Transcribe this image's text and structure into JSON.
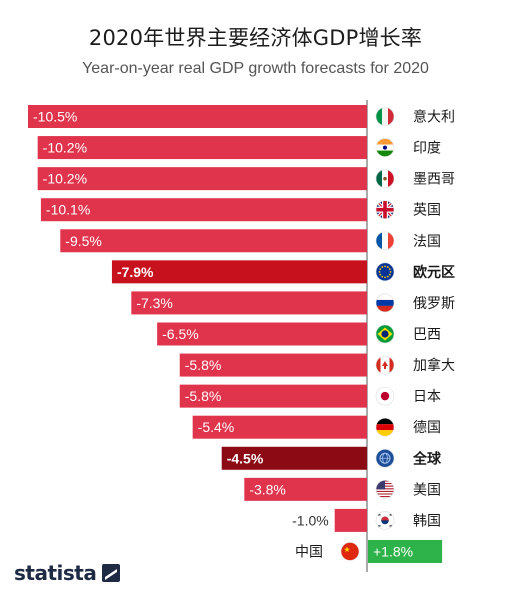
{
  "title": "2020年世界主要经济体GDP增长率",
  "subtitle": "Year-on-year real GDP growth forecasts for 2020",
  "brand": "statista",
  "colors": {
    "bar": "#e0344c",
    "highlight_eu": "#c7111d",
    "highlight_world": "#8b0a14",
    "positive": "#2db34a",
    "axis": "#555555"
  },
  "chart_data": {
    "type": "bar",
    "orientation": "horizontal",
    "value_unit": "%",
    "categories": [
      "意大利",
      "印度",
      "墨西哥",
      "英国",
      "法国",
      "欧元区",
      "俄罗斯",
      "巴西",
      "加拿大",
      "日本",
      "德国",
      "全球",
      "美国",
      "韩国",
      "中国"
    ],
    "values": [
      -10.5,
      -10.2,
      -10.2,
      -10.1,
      -9.5,
      -7.9,
      -7.3,
      -6.5,
      -5.8,
      -5.8,
      -5.4,
      -4.5,
      -3.8,
      -1.0,
      1.8
    ],
    "value_labels": [
      "-10.5%",
      "-10.2%",
      "-10.2%",
      "-10.1%",
      "-9.5%",
      "-7.9%",
      "-7.3%",
      "-6.5%",
      "-5.8%",
      "-5.8%",
      "-5.4%",
      "-4.5%",
      "-3.8%",
      "-1.0%",
      "+1.8%"
    ],
    "highlighted": [
      "欧元区",
      "全球"
    ],
    "flags": [
      "it-flag-icon",
      "in-flag-icon",
      "mx-flag-icon",
      "gb-flag-icon",
      "fr-flag-icon",
      "eu-flag-icon",
      "ru-flag-icon",
      "br-flag-icon",
      "ca-flag-icon",
      "jp-flag-icon",
      "de-flag-icon",
      "globe-icon",
      "us-flag-icon",
      "kr-flag-icon",
      "cn-flag-icon"
    ]
  }
}
